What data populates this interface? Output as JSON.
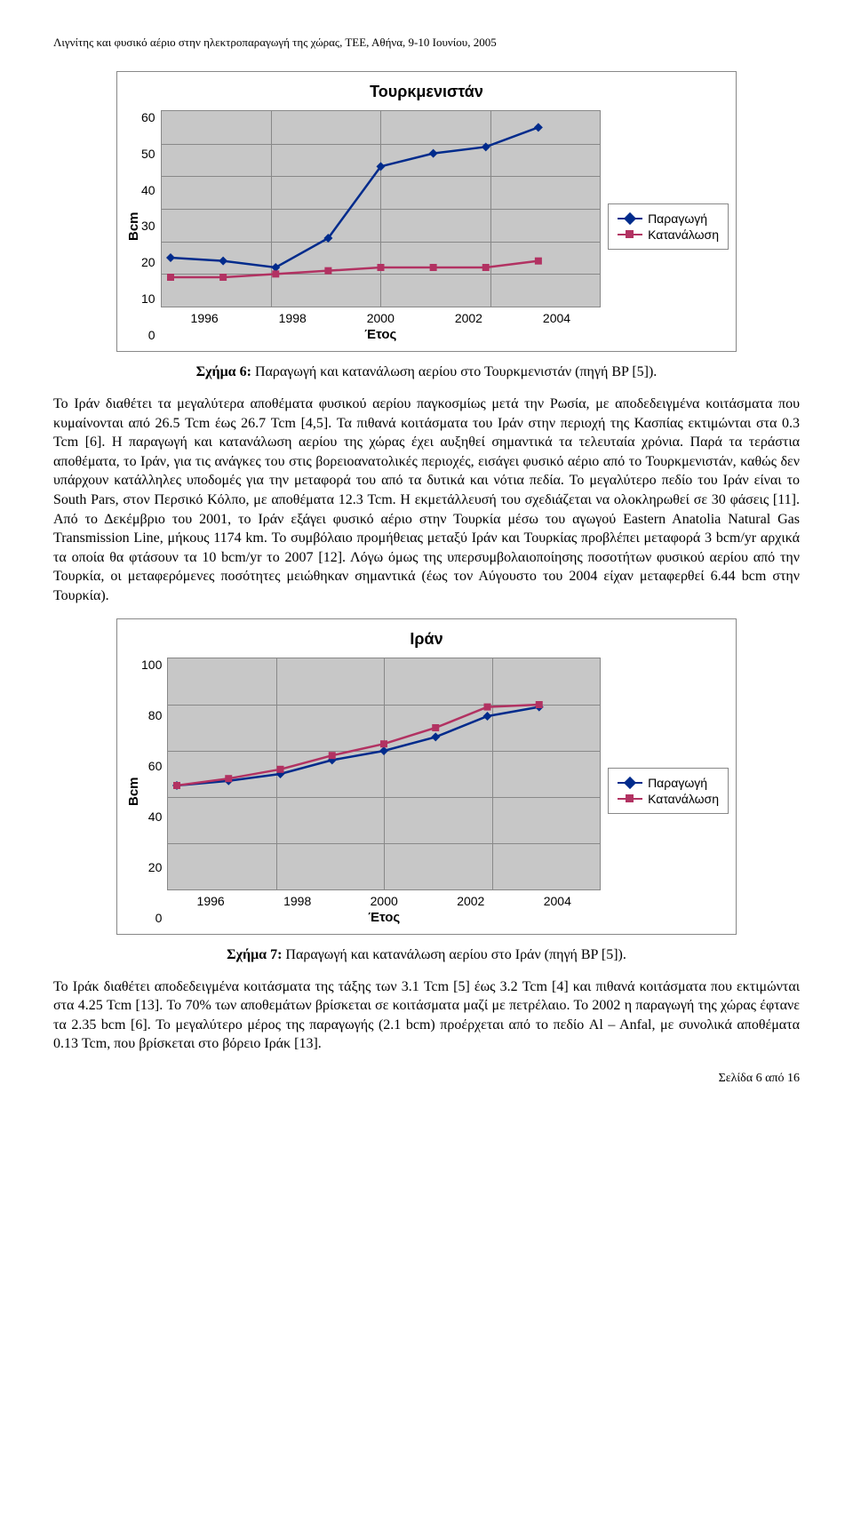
{
  "header": "Λιγνίτης και φυσικό αέριο στην ηλεκτροπαραγωγή της χώρας, ΤΕΕ, Αθήνα, 9-10 Ιουνίου, 2005",
  "chart1": {
    "type": "line",
    "title": "Τουρκμενιστάν",
    "y_label": "Bcm",
    "x_label": "Έτος",
    "y_ticks": [
      "60",
      "50",
      "40",
      "30",
      "20",
      "10",
      "0"
    ],
    "x_ticks": [
      "1996",
      "1998",
      "2000",
      "2002",
      "2004"
    ],
    "ylim": [
      0,
      60
    ],
    "series": {
      "production": {
        "label": "Παραγωγή",
        "color": "#002b8c",
        "marker": "diamond",
        "x": [
          1996,
          1997,
          1998,
          1999,
          2000,
          2001,
          2002,
          2003
        ],
        "y": [
          15,
          14,
          12,
          21,
          43,
          47,
          49,
          55
        ]
      },
      "consumption": {
        "label": "Κατανάλωση",
        "color": "#b23262",
        "marker": "square",
        "x": [
          1996,
          1997,
          1998,
          1999,
          2000,
          2001,
          2002,
          2003
        ],
        "y": [
          9,
          9,
          10,
          11,
          12,
          12,
          12,
          14
        ]
      }
    },
    "plot_bg": "#c7c7c7",
    "grid_color": "#888888"
  },
  "caption1_bold": "Σχήμα 6:",
  "caption1_rest": " Παραγωγή και κατανάλωση αερίου στο Τουρκμενιστάν (πηγή BP [5]).",
  "para1": "Το Ιράν διαθέτει τα μεγαλύτερα αποθέματα φυσικού αερίου παγκοσμίως μετά την Ρωσία, με αποδεδειγμένα κοιτάσματα που κυμαίνονται από 26.5 Tcm έως 26.7 Tcm [4,5]. Τα πιθανά κοιτάσματα του Ιράν στην περιοχή της Κασπίας εκτιμώνται στα 0.3 Tcm [6]. Η παραγωγή και κατανάλωση αερίου της χώρας έχει αυξηθεί σημαντικά τα τελευταία χρόνια. Παρά τα τεράστια αποθέματα, το Ιράν, για τις ανάγκες του στις βορειοανατολικές περιοχές, εισάγει φυσικό αέριο από το Τουρκμενιστάν, καθώς δεν υπάρχουν κατάλληλες υποδομές για την μεταφορά του από τα δυτικά και νότια πεδία. Το μεγαλύτερο πεδίο του Ιράν είναι το South Pars, στον Περσικό Κόλπο, με αποθέματα 12.3 Tcm. Η εκμετάλλευσή του σχεδιάζεται να ολοκληρωθεί σε 30 φάσεις [11]. Από το Δεκέμβριο του 2001, το Ιράν εξάγει φυσικό αέριο στην Τουρκία μέσω του αγωγού Eastern Anatolia Natural Gas Transmission Line, μήκους 1174 km. Το συμβόλαιο προμήθειας μεταξύ Ιράν και Τουρκίας προβλέπει μεταφορά 3 bcm/yr αρχικά τα οποία θα φτάσουν τα 10 bcm/yr το 2007 [12]. Λόγω όμως της υπερσυμβολαιοποίησης ποσοτήτων φυσικού αερίου από την Τουρκία, οι μεταφερόμενες ποσότητες μειώθηκαν σημαντικά (έως τον Αύγουστο του 2004 είχαν μεταφερθεί 6.44 bcm στην Τουρκία).",
  "chart2": {
    "type": "line",
    "title": "Ιράν",
    "y_label": "Bcm",
    "x_label": "Έτος",
    "y_ticks": [
      "100",
      "80",
      "60",
      "40",
      "20",
      "0"
    ],
    "x_ticks": [
      "1996",
      "1998",
      "2000",
      "2002",
      "2004"
    ],
    "ylim": [
      0,
      100
    ],
    "series": {
      "production": {
        "label": "Παραγωγή",
        "color": "#002b8c",
        "marker": "diamond",
        "x": [
          1996,
          1997,
          1998,
          1999,
          2000,
          2001,
          2002,
          2003
        ],
        "y": [
          45,
          47,
          50,
          56,
          60,
          66,
          75,
          79
        ]
      },
      "consumption": {
        "label": "Κατανάλωση",
        "color": "#b23262",
        "marker": "square",
        "x": [
          1996,
          1997,
          1998,
          1999,
          2000,
          2001,
          2002,
          2003
        ],
        "y": [
          45,
          48,
          52,
          58,
          63,
          70,
          79,
          80
        ]
      }
    },
    "plot_bg": "#c7c7c7",
    "grid_color": "#888888"
  },
  "caption2_bold": "Σχήμα 7:",
  "caption2_rest": " Παραγωγή και κατανάλωση αερίου στο Ιράν (πηγή BP [5]).",
  "para2": "Το Ιράκ διαθέτει αποδεδειγμένα κοιτάσματα της τάξης των 3.1 Tcm [5] έως 3.2 Tcm [4] και πιθανά κοιτάσματα που εκτιμώνται στα 4.25 Tcm [13]. Το 70% των αποθεμάτων βρίσκεται σε κοιτάσματα μαζί με πετρέλαιο. Το 2002 η παραγωγή της χώρας έφτανε τα 2.35 bcm [6]. Το μεγαλύτερο μέρος της παραγωγής (2.1 bcm) προέρχεται από το πεδίο Al – Anfal, με συνολικά αποθέματα 0.13 Tcm, που βρίσκεται στο βόρειο Ιράκ [13].",
  "footer": "Σελίδα 6 από 16"
}
